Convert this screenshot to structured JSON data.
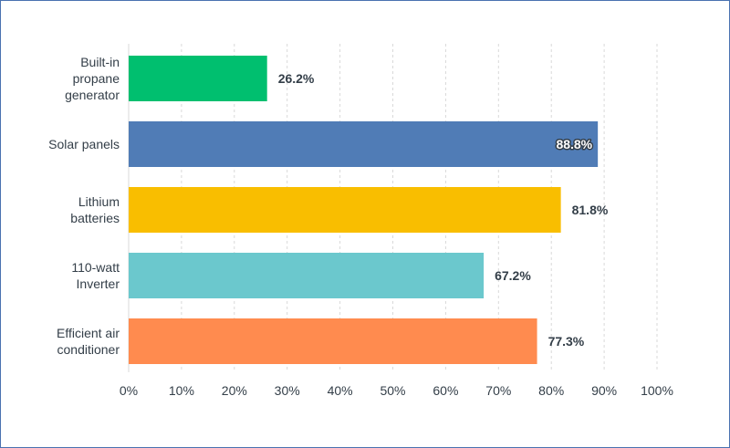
{
  "chart_data": {
    "type": "bar",
    "orientation": "horizontal",
    "categories": [
      [
        "Built-in",
        "propane",
        "generator"
      ],
      [
        "Solar panels"
      ],
      [
        "Lithium",
        "batteries"
      ],
      [
        "110-watt",
        "Inverter"
      ],
      [
        "Efficient air",
        "conditioner"
      ]
    ],
    "values": [
      26.2,
      88.8,
      81.8,
      67.2,
      77.3
    ],
    "value_labels": [
      "26.2%",
      "88.8%",
      "81.8%",
      "67.2%",
      "77.3%"
    ],
    "colors": [
      "#00bf6f",
      "#507cb6",
      "#f9be00",
      "#6bc8cd",
      "#ff8b4f"
    ],
    "xlim": [
      0,
      100
    ],
    "xticks": [
      0,
      10,
      20,
      30,
      40,
      50,
      60,
      70,
      80,
      90,
      100
    ],
    "xtick_labels": [
      "0%",
      "10%",
      "20%",
      "30%",
      "40%",
      "50%",
      "60%",
      "70%",
      "80%",
      "90%",
      "100%"
    ],
    "grid": "vertical dashed",
    "legend": "none"
  }
}
